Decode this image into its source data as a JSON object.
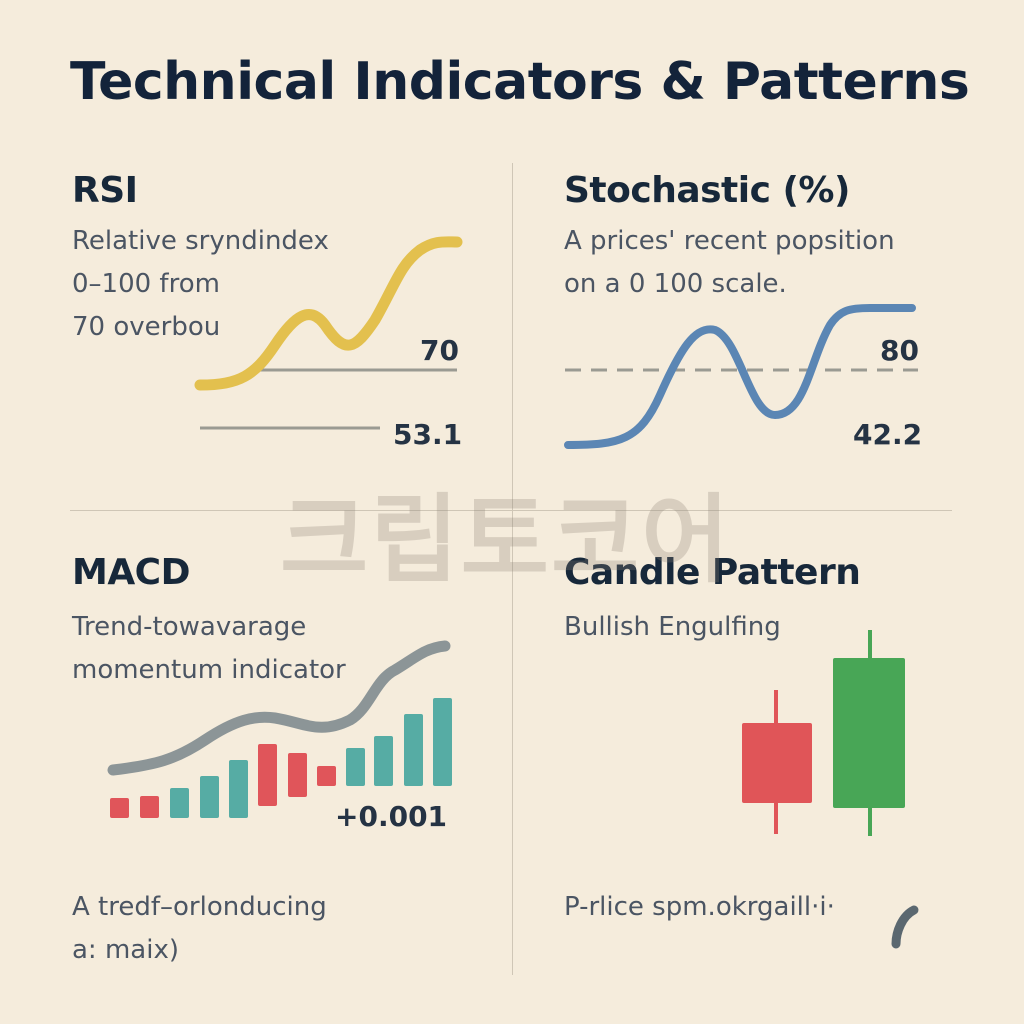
{
  "page": {
    "title": "Technical Indicators & Patterns"
  },
  "rsi": {
    "title": "RSI",
    "desc_lines": [
      "Relative sryndindex",
      "0–100 from",
      "70 overbou"
    ],
    "level_label": "70",
    "value_label": "53.1",
    "line_color": "#e3c04e"
  },
  "stochastic": {
    "title": "Stochastic (%)",
    "desc_lines": [
      "A prices' recent popsition",
      "on a 0 100 scale."
    ],
    "level_label": "80",
    "value_label": "42.2",
    "line_color": "#5b86b4"
  },
  "macd": {
    "title": "MACD",
    "desc_lines": [
      "Trend-towavarage",
      "momentum indicator"
    ],
    "value_label": "+0.001",
    "footer_lines": [
      "A tredf–orlonducing",
      "a: maix)"
    ],
    "histogram_colors": [
      "#e0555a",
      "#e0555a",
      "#56aca4",
      "#56aca4",
      "#56aca4",
      "#e0555a",
      "#e0555a",
      "#e0555a",
      "#56aca4",
      "#56aca4",
      "#56aca4",
      "#56aca4"
    ]
  },
  "candle": {
    "title": "Candle Pattern",
    "subtitle": "Bullish Engulfing",
    "footer": "P-rlice  spm.okrgaill·i·",
    "bear_color": "#e05558",
    "bull_color": "#48a656"
  },
  "watermark": "크립토코어"
}
